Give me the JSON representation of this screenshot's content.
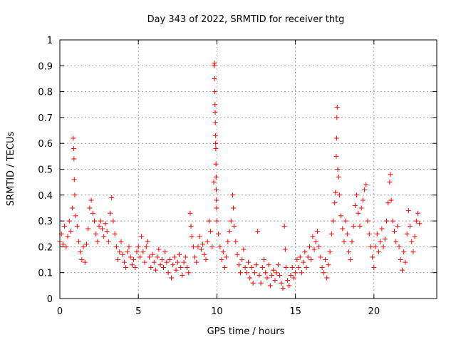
{
  "chart_data": {
    "type": "scatter",
    "title": "Day 343 of 2022, SRMTID for receiver thtg",
    "xlabel": "GPS time / hours",
    "ylabel": "SRMTID / TECUs",
    "xlim": [
      0,
      24
    ],
    "ylim": [
      0,
      1
    ],
    "xticks": [
      0,
      5,
      10,
      15,
      20
    ],
    "xtick_labels": [
      "0",
      "5",
      "10",
      "15",
      "20"
    ],
    "yticks": [
      0,
      0.1,
      0.2,
      0.3,
      0.4,
      0.5,
      0.6,
      0.7,
      0.8,
      0.9,
      1
    ],
    "ytick_labels": [
      "0",
      "0.1",
      "0.2",
      "0.3",
      "0.4",
      "0.5",
      "0.6",
      "0.7",
      "0.8",
      "0.9",
      "1"
    ],
    "grid": true,
    "marker": "+",
    "series": [
      {
        "name": "SRMTID",
        "color": "#ff0000",
        "points": [
          [
            0.0,
            0.22
          ],
          [
            0.1,
            0.25
          ],
          [
            0.2,
            0.21
          ],
          [
            0.3,
            0.28
          ],
          [
            0.4,
            0.2
          ],
          [
            0.5,
            0.24
          ],
          [
            0.6,
            0.3
          ],
          [
            0.7,
            0.26
          ],
          [
            0.8,
            0.35
          ],
          [
            0.85,
            0.62
          ],
          [
            0.88,
            0.58
          ],
          [
            0.9,
            0.54
          ],
          [
            0.92,
            0.46
          ],
          [
            0.95,
            0.4
          ],
          [
            1.0,
            0.32
          ],
          [
            1.1,
            0.28
          ],
          [
            1.2,
            0.22
          ],
          [
            1.3,
            0.18
          ],
          [
            1.4,
            0.15
          ],
          [
            1.5,
            0.2
          ],
          [
            1.6,
            0.14
          ],
          [
            1.7,
            0.21
          ],
          [
            1.8,
            0.27
          ],
          [
            1.9,
            0.35
          ],
          [
            2.0,
            0.38
          ],
          [
            2.1,
            0.33
          ],
          [
            2.2,
            0.3
          ],
          [
            2.3,
            0.25
          ],
          [
            2.4,
            0.22
          ],
          [
            2.5,
            0.28
          ],
          [
            2.6,
            0.3
          ],
          [
            2.7,
            0.27
          ],
          [
            2.8,
            0.24
          ],
          [
            2.9,
            0.29
          ],
          [
            3.0,
            0.26
          ],
          [
            3.1,
            0.22
          ],
          [
            3.2,
            0.33
          ],
          [
            3.3,
            0.39
          ],
          [
            3.4,
            0.3
          ],
          [
            3.5,
            0.25
          ],
          [
            3.6,
            0.2
          ],
          [
            3.7,
            0.15
          ],
          [
            3.8,
            0.18
          ],
          [
            3.9,
            0.22
          ],
          [
            4.0,
            0.17
          ],
          [
            4.1,
            0.14
          ],
          [
            4.2,
            0.12
          ],
          [
            4.3,
            0.18
          ],
          [
            4.4,
            0.2
          ],
          [
            4.5,
            0.16
          ],
          [
            4.6,
            0.13
          ],
          [
            4.7,
            0.15
          ],
          [
            4.8,
            0.12
          ],
          [
            4.9,
            0.18
          ],
          [
            5.0,
            0.2
          ],
          [
            5.1,
            0.16
          ],
          [
            5.2,
            0.24
          ],
          [
            5.3,
            0.18
          ],
          [
            5.4,
            0.14
          ],
          [
            5.5,
            0.2
          ],
          [
            5.6,
            0.22
          ],
          [
            5.7,
            0.16
          ],
          [
            5.8,
            0.12
          ],
          [
            5.9,
            0.17
          ],
          [
            6.0,
            0.14
          ],
          [
            6.1,
            0.11
          ],
          [
            6.2,
            0.16
          ],
          [
            6.3,
            0.19
          ],
          [
            6.4,
            0.13
          ],
          [
            6.5,
            0.15
          ],
          [
            6.6,
            0.12
          ],
          [
            6.7,
            0.18
          ],
          [
            6.8,
            0.14
          ],
          [
            6.9,
            0.1
          ],
          [
            7.0,
            0.15
          ],
          [
            7.1,
            0.08
          ],
          [
            7.2,
            0.13
          ],
          [
            7.3,
            0.16
          ],
          [
            7.4,
            0.11
          ],
          [
            7.5,
            0.14
          ],
          [
            7.6,
            0.17
          ],
          [
            7.7,
            0.12
          ],
          [
            7.8,
            0.09
          ],
          [
            7.9,
            0.14
          ],
          [
            8.0,
            0.16
          ],
          [
            8.1,
            0.12
          ],
          [
            8.2,
            0.1
          ],
          [
            8.3,
            0.33
          ],
          [
            8.35,
            0.28
          ],
          [
            8.4,
            0.24
          ],
          [
            8.5,
            0.2
          ],
          [
            8.6,
            0.16
          ],
          [
            8.7,
            0.14
          ],
          [
            8.8,
            0.2
          ],
          [
            8.9,
            0.24
          ],
          [
            9.0,
            0.19
          ],
          [
            9.1,
            0.21
          ],
          [
            9.2,
            0.17
          ],
          [
            9.3,
            0.15
          ],
          [
            9.4,
            0.22
          ],
          [
            9.5,
            0.3
          ],
          [
            9.6,
            0.26
          ],
          [
            9.7,
            0.2
          ],
          [
            9.8,
            0.45
          ],
          [
            9.82,
            0.9
          ],
          [
            9.85,
            0.91
          ],
          [
            9.86,
            0.85
          ],
          [
            9.87,
            0.8
          ],
          [
            9.88,
            0.75
          ],
          [
            9.89,
            0.72
          ],
          [
            9.9,
            0.68
          ],
          [
            9.91,
            0.63
          ],
          [
            9.92,
            0.6
          ],
          [
            9.93,
            0.58
          ],
          [
            9.94,
            0.52
          ],
          [
            9.95,
            0.47
          ],
          [
            9.96,
            0.42
          ],
          [
            9.97,
            0.38
          ],
          [
            9.98,
            0.35
          ],
          [
            10.0,
            0.3
          ],
          [
            10.1,
            0.25
          ],
          [
            10.2,
            0.2
          ],
          [
            10.3,
            0.15
          ],
          [
            10.4,
            0.18
          ],
          [
            10.5,
            0.12
          ],
          [
            10.6,
            0.16
          ],
          [
            10.7,
            0.22
          ],
          [
            10.8,
            0.26
          ],
          [
            10.9,
            0.3
          ],
          [
            11.0,
            0.4
          ],
          [
            11.05,
            0.35
          ],
          [
            11.1,
            0.28
          ],
          [
            11.2,
            0.22
          ],
          [
            11.3,
            0.17
          ],
          [
            11.4,
            0.13
          ],
          [
            11.5,
            0.1
          ],
          [
            11.6,
            0.15
          ],
          [
            11.7,
            0.19
          ],
          [
            11.8,
            0.12
          ],
          [
            11.9,
            0.1
          ],
          [
            12.0,
            0.14
          ],
          [
            12.1,
            0.08
          ],
          [
            12.2,
            0.12
          ],
          [
            12.3,
            0.06
          ],
          [
            12.4,
            0.1
          ],
          [
            12.5,
            0.13
          ],
          [
            12.6,
            0.26
          ],
          [
            12.7,
            0.09
          ],
          [
            12.8,
            0.06
          ],
          [
            12.9,
            0.12
          ],
          [
            13.0,
            0.15
          ],
          [
            13.1,
            0.1
          ],
          [
            13.2,
            0.08
          ],
          [
            13.3,
            0.13
          ],
          [
            13.4,
            0.05
          ],
          [
            13.5,
            0.09
          ],
          [
            13.6,
            0.11
          ],
          [
            13.7,
            0.07
          ],
          [
            13.8,
            0.1
          ],
          [
            13.9,
            0.13
          ],
          [
            14.0,
            0.09
          ],
          [
            14.1,
            0.06
          ],
          [
            14.2,
            0.04
          ],
          [
            14.3,
            0.28
          ],
          [
            14.35,
            0.19
          ],
          [
            14.4,
            0.12
          ],
          [
            14.5,
            0.07
          ],
          [
            14.6,
            0.05
          ],
          [
            14.7,
            0.09
          ],
          [
            14.8,
            0.12
          ],
          [
            14.9,
            0.08
          ],
          [
            15.0,
            0.1
          ],
          [
            15.1,
            0.15
          ],
          [
            15.2,
            0.12
          ],
          [
            15.3,
            0.16
          ],
          [
            15.4,
            0.1
          ],
          [
            15.5,
            0.14
          ],
          [
            15.6,
            0.18
          ],
          [
            15.7,
            0.12
          ],
          [
            15.8,
            0.16
          ],
          [
            15.9,
            0.2
          ],
          [
            16.0,
            0.15
          ],
          [
            16.1,
            0.24
          ],
          [
            16.2,
            0.19
          ],
          [
            16.3,
            0.22
          ],
          [
            16.4,
            0.26
          ],
          [
            16.5,
            0.2
          ],
          [
            16.6,
            0.16
          ],
          [
            16.7,
            0.12
          ],
          [
            16.8,
            0.1
          ],
          [
            16.9,
            0.15
          ],
          [
            17.0,
            0.08
          ],
          [
            17.1,
            0.13
          ],
          [
            17.2,
            0.18
          ],
          [
            17.3,
            0.25
          ],
          [
            17.4,
            0.3
          ],
          [
            17.5,
            0.37
          ],
          [
            17.55,
            0.41
          ],
          [
            17.6,
            0.55
          ],
          [
            17.62,
            0.62
          ],
          [
            17.64,
            0.7
          ],
          [
            17.66,
            0.74
          ],
          [
            17.7,
            0.5
          ],
          [
            17.75,
            0.47
          ],
          [
            17.8,
            0.4
          ],
          [
            17.9,
            0.32
          ],
          [
            18.0,
            0.27
          ],
          [
            18.1,
            0.22
          ],
          [
            18.2,
            0.3
          ],
          [
            18.3,
            0.25
          ],
          [
            18.4,
            0.18
          ],
          [
            18.5,
            0.15
          ],
          [
            18.6,
            0.22
          ],
          [
            18.7,
            0.28
          ],
          [
            18.8,
            0.36
          ],
          [
            18.9,
            0.4
          ],
          [
            19.0,
            0.33
          ],
          [
            19.1,
            0.28
          ],
          [
            19.2,
            0.35
          ],
          [
            19.3,
            0.38
          ],
          [
            19.4,
            0.42
          ],
          [
            19.5,
            0.44
          ],
          [
            19.6,
            0.3
          ],
          [
            19.7,
            0.25
          ],
          [
            19.8,
            0.2
          ],
          [
            19.9,
            0.16
          ],
          [
            20.0,
            0.12
          ],
          [
            20.1,
            0.2
          ],
          [
            20.2,
            0.25
          ],
          [
            20.3,
            0.18
          ],
          [
            20.4,
            0.22
          ],
          [
            20.5,
            0.27
          ],
          [
            20.6,
            0.2
          ],
          [
            20.7,
            0.23
          ],
          [
            20.8,
            0.3
          ],
          [
            20.9,
            0.37
          ],
          [
            21.0,
            0.45
          ],
          [
            21.05,
            0.48
          ],
          [
            21.1,
            0.38
          ],
          [
            21.2,
            0.3
          ],
          [
            21.3,
            0.26
          ],
          [
            21.4,
            0.22
          ],
          [
            21.5,
            0.28
          ],
          [
            21.6,
            0.2
          ],
          [
            21.7,
            0.15
          ],
          [
            21.8,
            0.11
          ],
          [
            21.9,
            0.18
          ],
          [
            22.0,
            0.14
          ],
          [
            22.1,
            0.25
          ],
          [
            22.2,
            0.34
          ],
          [
            22.3,
            0.28
          ],
          [
            22.4,
            0.22
          ],
          [
            22.5,
            0.18
          ],
          [
            22.6,
            0.24
          ],
          [
            22.7,
            0.3
          ],
          [
            22.8,
            0.33
          ],
          [
            22.9,
            0.29
          ]
        ]
      }
    ]
  }
}
